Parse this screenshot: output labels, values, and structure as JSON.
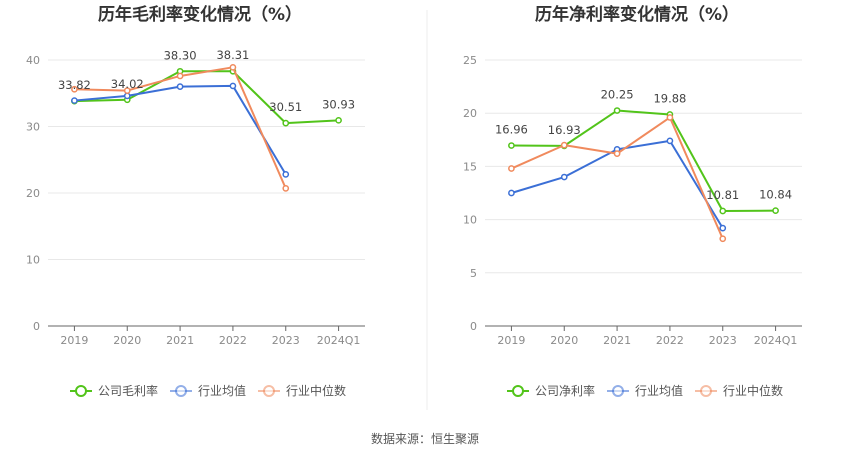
{
  "source": "数据来源：恒生聚源",
  "colors": {
    "company": "#52c41a",
    "avg": "#3b6fd6",
    "median": "#f08a5d"
  },
  "chart_data": [
    {
      "type": "line",
      "title": "历年毛利率变化情况（%）",
      "categories": [
        "2019",
        "2020",
        "2021",
        "2022",
        "2023",
        "2024Q1"
      ],
      "ylim": [
        0,
        40
      ],
      "yticks": [
        0,
        10,
        20,
        30,
        40
      ],
      "grid": true,
      "legend": "bottom",
      "series": [
        {
          "name": "公司毛利率",
          "key": "company",
          "values": [
            33.82,
            34.02,
            38.3,
            38.31,
            30.51,
            30.93
          ],
          "labels": [
            "33.82",
            "34.02",
            "38.30",
            "38.31",
            "30.51",
            "30.93"
          ]
        },
        {
          "name": "行业均值",
          "key": "avg",
          "values": [
            33.9,
            34.6,
            36.0,
            36.1,
            22.8,
            null
          ]
        },
        {
          "name": "行业中位数",
          "key": "median",
          "values": [
            35.6,
            35.4,
            37.6,
            38.9,
            20.7,
            null
          ]
        }
      ]
    },
    {
      "type": "line",
      "title": "历年净利率变化情况（%）",
      "categories": [
        "2019",
        "2020",
        "2021",
        "2022",
        "2023",
        "2024Q1"
      ],
      "ylim": [
        0,
        25
      ],
      "yticks": [
        0,
        5,
        10,
        15,
        20,
        25
      ],
      "grid": true,
      "legend": "bottom",
      "series": [
        {
          "name": "公司净利率",
          "key": "company",
          "values": [
            16.96,
            16.93,
            20.25,
            19.88,
            10.81,
            10.84
          ],
          "labels": [
            "16.96",
            "16.93",
            "20.25",
            "19.88",
            "10.81",
            "10.84"
          ]
        },
        {
          "name": "行业均值",
          "key": "avg",
          "values": [
            12.5,
            14.0,
            16.6,
            17.4,
            9.2,
            null
          ]
        },
        {
          "name": "行业中位数",
          "key": "median",
          "values": [
            14.8,
            17.0,
            16.2,
            19.6,
            8.2,
            null
          ]
        }
      ]
    }
  ]
}
